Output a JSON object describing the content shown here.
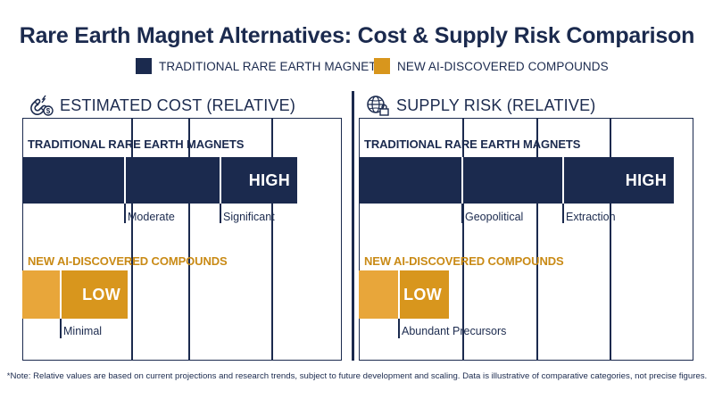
{
  "title": "Rare Earth Magnet Alternatives: Cost & Supply Risk Comparison",
  "legend": [
    {
      "label": "TRADITIONAL RARE EARTH MAGNETS",
      "color": "#1b2a4e"
    },
    {
      "label": "NEW AI-DISCOVERED COMPOUNDS",
      "color": "#d8961d"
    }
  ],
  "colors": {
    "navy": "#1b2a4e",
    "gold": "#d8961d",
    "gold_light": "#e8a63a",
    "gold_dark": "#c98a15"
  },
  "chart_data": [
    {
      "type": "bar",
      "title": "ESTIMATED COST (RELATIVE)",
      "icon": "magnet-dollar-icon",
      "xlim": [
        0,
        1
      ],
      "series": [
        {
          "name": "TRADITIONAL RARE EARTH MAGNETS",
          "level_label": "HIGH",
          "value": 0.86,
          "segments": [
            {
              "label": "",
              "end": 0.32
            },
            {
              "label": "Moderate",
              "end": 0.62
            },
            {
              "label": "Significant",
              "end": 0.86
            }
          ]
        },
        {
          "name": "NEW AI-DISCOVERED COMPOUNDS",
          "level_label": "LOW",
          "value": 0.33,
          "segments": [
            {
              "label": "",
              "end": 0.12
            },
            {
              "label": "Minimal",
              "end": 0.33
            }
          ]
        }
      ]
    },
    {
      "type": "bar",
      "title": "SUPPLY RISK (RELATIVE)",
      "icon": "globe-lock-icon",
      "xlim": [
        0,
        1
      ],
      "series": [
        {
          "name": "TRADITIONAL RARE EARTH MAGNETS",
          "level_label": "HIGH",
          "value": 0.94,
          "segments": [
            {
              "label": "",
              "end": 0.31
            },
            {
              "label": "Geopolitical",
              "end": 0.61
            },
            {
              "label": "Extraction",
              "end": 0.94
            }
          ]
        },
        {
          "name": "NEW AI-DISCOVERED COMPOUNDS",
          "level_label": "LOW",
          "value": 0.27,
          "segments": [
            {
              "label": "",
              "end": 0.12
            },
            {
              "label": "Abundant Precursors",
              "end": 0.27
            }
          ]
        }
      ]
    }
  ],
  "note": "*Note: Relative values are based on current projections and research trends, subject to future development and scaling. Data is illustrative of comparative categories, not precise figures."
}
